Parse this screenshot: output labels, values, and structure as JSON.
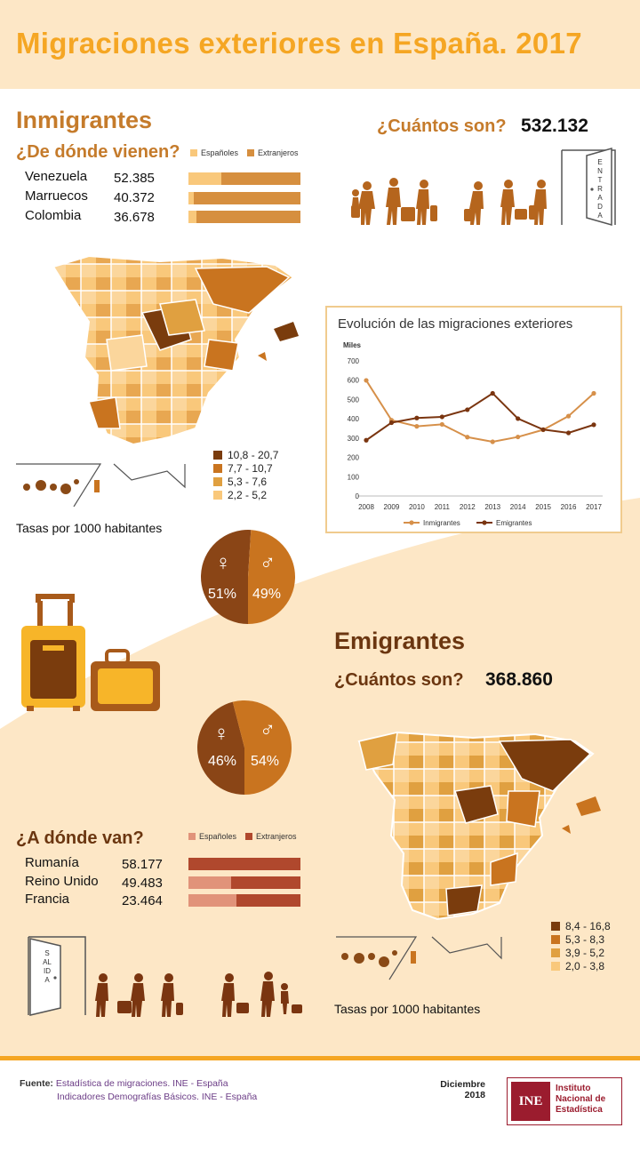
{
  "header": {
    "title": "Migraciones exteriores en España. 2017"
  },
  "colors": {
    "light": "#f9c87b",
    "mid": "#e0a040",
    "orange": "#c9741f",
    "dark": "#7a3c0d",
    "header_bg": "#fde7c6",
    "accent": "#f5a623"
  },
  "immigrants": {
    "title": "Inmigrantes",
    "origin_q": "¿De dónde vienen?",
    "count_q": "¿Cuántos son?",
    "count": "532.132",
    "legend": {
      "spanish": "Españoles",
      "foreign": "Extranjeros"
    },
    "rows": [
      {
        "country": "Venezuela",
        "value": "52.385",
        "spanish_share": 0.29
      },
      {
        "country": "Marruecos",
        "value": "40.372",
        "spanish_share": 0.05
      },
      {
        "country": "Colombia",
        "value": "36.678",
        "spanish_share": 0.07
      }
    ],
    "door_label": "ENTRADA",
    "map_legend": [
      "10,8 - 20,7",
      "7,7 - 10,7",
      "5,3 - 7,6",
      "2,2 - 5,2"
    ],
    "rates_caption": "Tasas por 1000 habitantes",
    "sex": {
      "female_symbol": "♀",
      "male_symbol": "♂",
      "female": "51%",
      "male": "49%",
      "female_share": 0.51
    }
  },
  "emigrants": {
    "title": "Emigrantes",
    "count_q": "¿Cuántos son?",
    "count": "368.860",
    "dest_q": "¿A dónde van?",
    "legend": {
      "spanish": "Españoles",
      "foreign": "Extranjeros"
    },
    "rows": [
      {
        "country": "Rumanía",
        "value": "58.177",
        "spanish_share": 0.0
      },
      {
        "country": "Reino Unido",
        "value": "49.483",
        "spanish_share": 0.38
      },
      {
        "country": "Francia",
        "value": "23.464",
        "spanish_share": 0.43
      }
    ],
    "door_label": "SALIDA",
    "map_legend": [
      "8,4 - 16,8",
      "5,3 - 8,3",
      "3,9 - 5,2",
      "2,0 - 3,8"
    ],
    "rates_caption": "Tasas por 1000 habitantes",
    "sex": {
      "female_symbol": "♀",
      "male_symbol": "♂",
      "female": "46%",
      "male": "54%",
      "female_share": 0.46
    }
  },
  "chart_data": {
    "type": "line",
    "title": "Evolución de las migraciones exteriores",
    "ylabel": "Miles",
    "x": [
      "2008",
      "2009",
      "2010",
      "2011",
      "2012",
      "2013",
      "2014",
      "2015",
      "2016",
      "2017"
    ],
    "ylim": [
      0,
      700
    ],
    "yticks": [
      "0",
      "100",
      "200",
      "300",
      "400",
      "500",
      "600",
      "700"
    ],
    "series": [
      {
        "name": "Inmigrantes",
        "color": "#d6904a",
        "values": [
          599,
          393,
          361,
          371,
          305,
          281,
          306,
          343,
          414,
          532
        ]
      },
      {
        "name": "Emigrantes",
        "color": "#7a3510",
        "values": [
          289,
          380,
          404,
          410,
          447,
          532,
          401,
          344,
          327,
          369
        ]
      }
    ],
    "legend_position": "bottom",
    "grid": false
  },
  "footer": {
    "source_label": "Fuente:",
    "source_1": "Estadística de migraciones. INE - España",
    "source_2": "Indicadores Demografías Básicos. INE - España",
    "date_1": "Diciembre",
    "date_2": "2018",
    "logo_mark": "INE",
    "logo_1": "Instituto",
    "logo_2": "Nacional de",
    "logo_3": "Estadística"
  }
}
